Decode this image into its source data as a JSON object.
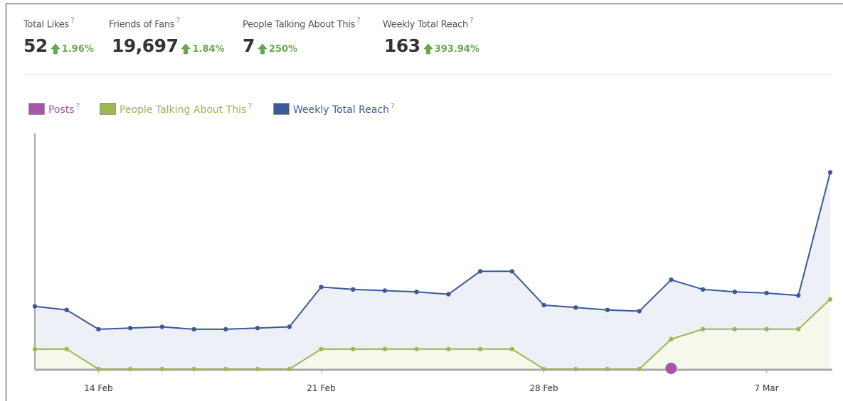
{
  "help_icon": "?",
  "stats": [
    {
      "label": "Total Likes",
      "value": "52",
      "change": "1.96%"
    },
    {
      "label": "Friends of Fans",
      "value": "19,697",
      "change": "1.84%"
    },
    {
      "label": "People Talking About This",
      "value": "7",
      "change": "250%"
    },
    {
      "label": "Weekly Total Reach",
      "value": "163",
      "change": "393.94%"
    }
  ],
  "chart_data": {
    "type": "line",
    "categories": [
      null,
      null,
      "14 Feb",
      null,
      null,
      null,
      null,
      null,
      null,
      "21 Feb",
      null,
      null,
      null,
      null,
      null,
      null,
      "28 Feb",
      null,
      null,
      null,
      null,
      null,
      null,
      "7 Mar",
      null,
      null
    ],
    "ylim": [
      0,
      190
    ],
    "y2lim": [
      0,
      23
    ],
    "series": [
      {
        "name": "Posts",
        "color": "#a855a8",
        "values": [
          null,
          null,
          null,
          null,
          null,
          null,
          null,
          null,
          null,
          null,
          null,
          null,
          null,
          null,
          null,
          null,
          null,
          null,
          null,
          null,
          1,
          null,
          null,
          null,
          null,
          null
        ]
      },
      {
        "name": "People Talking About This",
        "color": "#9cb84e",
        "axis": "y2",
        "values": [
          2,
          2,
          0,
          0,
          0,
          0,
          0,
          0,
          0,
          2,
          2,
          2,
          2,
          2,
          2,
          2,
          0,
          0,
          0,
          0,
          3,
          4,
          4,
          4,
          4,
          7
        ]
      },
      {
        "name": "Weekly Total Reach",
        "color": "#3b5998",
        "values": [
          52,
          49,
          33,
          34,
          35,
          33,
          33,
          34,
          35,
          68,
          66,
          65,
          64,
          62,
          81,
          81,
          53,
          51,
          49,
          48,
          74,
          66,
          64,
          63,
          61,
          163
        ]
      }
    ]
  }
}
